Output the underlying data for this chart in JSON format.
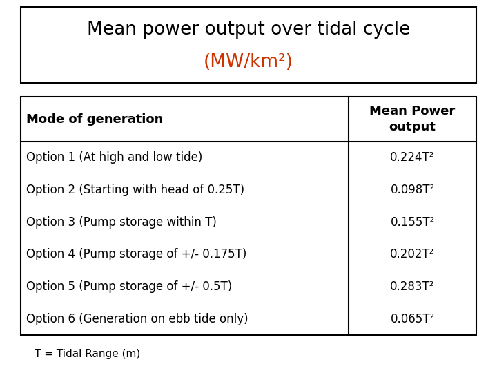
{
  "title_line1": "Mean power output over tidal cycle",
  "title_line2": "(MW/km²)",
  "title_color1": "#000000",
  "title_color2": "#cc3300",
  "header_col1": "Mode of generation",
  "header_col2": "Mean Power\noutput",
  "rows": [
    [
      "Option 1 (At high and low tide)",
      "0.224T²"
    ],
    [
      "Option 2 (Starting with head of 0.25T)",
      "0.098T²"
    ],
    [
      "Option 3 (Pump storage within T)",
      "0.155T²"
    ],
    [
      "Option 4 (Pump storage of +/- 0.175T)",
      "0.202T²"
    ],
    [
      "Option 5 (Pump storage of +/- 0.5T)",
      "0.283T²"
    ],
    [
      "Option 6 (Generation on ebb tide only)",
      "0.065T²"
    ]
  ],
  "footnote": "T = Tidal Range (m)",
  "bg_color": "#ffffff",
  "text_color": "#000000",
  "title_fontsize": 19,
  "subtitle_fontsize": 19,
  "header_fontsize": 13,
  "cell_fontsize": 12,
  "footnote_fontsize": 11
}
